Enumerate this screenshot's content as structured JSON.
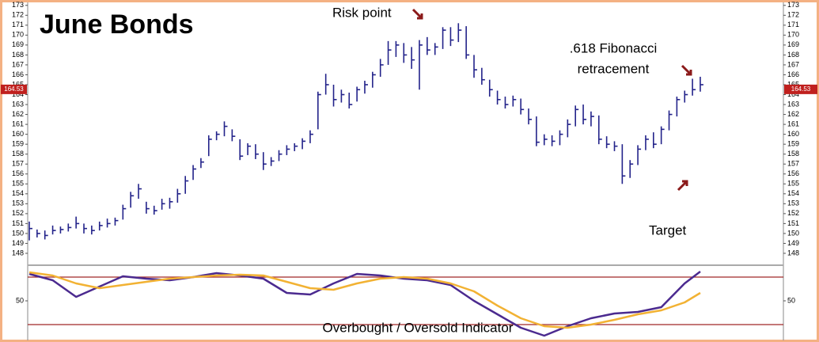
{
  "chart_data": {
    "type": "ohlc",
    "title": "June Bonds",
    "bars": {
      "color": "#23238a",
      "high": [
        151.2,
        150.4,
        150.3,
        150.8,
        150.7,
        151.0,
        151.7,
        151.0,
        150.8,
        151.2,
        151.5,
        151.6,
        152.9,
        154.2,
        155.0,
        153.2,
        152.8,
        153.5,
        153.6,
        154.5,
        155.8,
        156.9,
        157.6,
        159.9,
        160.3,
        161.3,
        160.5,
        159.5,
        159.1,
        159.0,
        158.2,
        157.7,
        158.4,
        158.9,
        159.1,
        159.6,
        160.4,
        164.3,
        166.1,
        165.0,
        164.5,
        164.2,
        164.8,
        165.4,
        166.3,
        167.6,
        169.4,
        169.4,
        169.2,
        168.8,
        169.5,
        169.8,
        169.2,
        170.8,
        170.8,
        171.2,
        170.9,
        168.0,
        166.7,
        165.5,
        164.4,
        163.8,
        163.9,
        163.6,
        162.6,
        161.8,
        160.0,
        159.9,
        160.4,
        161.5,
        162.9,
        163.0,
        162.3,
        161.9,
        159.8,
        159.3,
        159.0,
        157.4,
        158.9,
        159.9,
        160.2,
        160.8,
        162.4,
        163.8,
        164.4,
        165.6,
        165.8
      ],
      "low": [
        149.3,
        149.6,
        149.4,
        149.9,
        150.0,
        150.2,
        150.5,
        150.0,
        149.9,
        150.3,
        150.6,
        150.8,
        151.4,
        152.6,
        153.5,
        152.0,
        151.9,
        152.4,
        152.5,
        153.1,
        154.0,
        155.4,
        156.6,
        157.8,
        159.4,
        159.8,
        159.3,
        157.4,
        157.9,
        157.5,
        156.4,
        156.8,
        157.3,
        157.9,
        158.3,
        158.5,
        159.1,
        160.5,
        164.0,
        162.8,
        163.2,
        162.6,
        163.3,
        164.1,
        164.7,
        165.8,
        167.0,
        167.8,
        167.2,
        166.6,
        164.5,
        168.0,
        168.0,
        168.6,
        168.9,
        169.3,
        167.6,
        165.7,
        165.0,
        163.8,
        163.0,
        162.6,
        162.8,
        162.0,
        161.0,
        158.8,
        158.9,
        158.8,
        158.9,
        159.7,
        160.8,
        161.0,
        160.8,
        159.0,
        158.6,
        158.3,
        155.0,
        155.6,
        156.9,
        158.4,
        158.6,
        159.0,
        160.4,
        161.8,
        163.2,
        163.9,
        164.3
      ],
      "close": [
        150.5,
        150.0,
        149.8,
        150.3,
        150.4,
        150.6,
        151.0,
        150.5,
        150.3,
        150.8,
        151.0,
        151.3,
        152.5,
        153.8,
        154.5,
        152.5,
        152.3,
        153.0,
        153.2,
        154.0,
        155.3,
        156.5,
        157.2,
        159.5,
        160.0,
        160.8,
        159.8,
        157.8,
        158.8,
        158.0,
        157.0,
        157.3,
        158.0,
        158.5,
        158.8,
        159.3,
        160.0,
        164.0,
        165.0,
        163.5,
        164.0,
        163.0,
        164.5,
        165.0,
        166.0,
        167.0,
        168.5,
        169.0,
        168.0,
        167.5,
        169.0,
        168.5,
        168.8,
        170.5,
        169.5,
        170.5,
        168.0,
        166.5,
        165.5,
        164.5,
        163.5,
        163.0,
        163.5,
        162.5,
        161.5,
        159.2,
        159.5,
        159.3,
        160.0,
        161.0,
        162.5,
        161.5,
        161.8,
        159.5,
        159.0,
        158.8,
        155.8,
        157.0,
        158.5,
        159.5,
        159.0,
        160.5,
        162.0,
        163.5,
        164.0,
        164.5,
        165.0
      ]
    },
    "ylim": [
      147.2,
      173.3
    ],
    "yticks": [
      148,
      149,
      150,
      151,
      152,
      153,
      154,
      155,
      156,
      157,
      158,
      159,
      160,
      161,
      162,
      163,
      164,
      165,
      166,
      167,
      168,
      169,
      170,
      171,
      172,
      173
    ],
    "price_tag": {
      "value": 164.53,
      "label": "164.53"
    },
    "annotations": {
      "risk": "Risk point",
      "fib_line1": ".618 Fibonacci",
      "fib_line2": "retracement",
      "target": "Target"
    },
    "indicator": {
      "title": "Overbought / Oversold Indicator",
      "x": [
        0,
        3,
        6,
        9,
        12,
        15,
        18,
        21,
        24,
        27,
        30,
        33,
        36,
        39,
        42,
        45,
        48,
        51,
        54,
        57,
        60,
        63,
        66,
        69,
        72,
        75,
        78,
        81,
        84,
        86
      ],
      "series": [
        {
          "color": "#4b2a8f",
          "values": [
            84,
            76,
            55,
            68,
            81,
            78,
            76,
            80,
            85,
            82,
            78,
            60,
            58,
            72,
            84,
            82,
            78,
            76,
            70,
            50,
            33,
            16,
            6,
            18,
            28,
            34,
            36,
            42,
            72,
            87
          ]
        },
        {
          "color": "#f2b233",
          "values": [
            86,
            82,
            72,
            66,
            70,
            74,
            78,
            80,
            82,
            83,
            82,
            74,
            66,
            64,
            72,
            78,
            80,
            78,
            72,
            62,
            44,
            28,
            18,
            16,
            20,
            26,
            33,
            38,
            48,
            60
          ]
        }
      ],
      "ylim": [
        2,
        94
      ],
      "yticks": [
        50
      ],
      "bands": [
        80,
        20
      ],
      "band_color": "#a02828"
    }
  }
}
